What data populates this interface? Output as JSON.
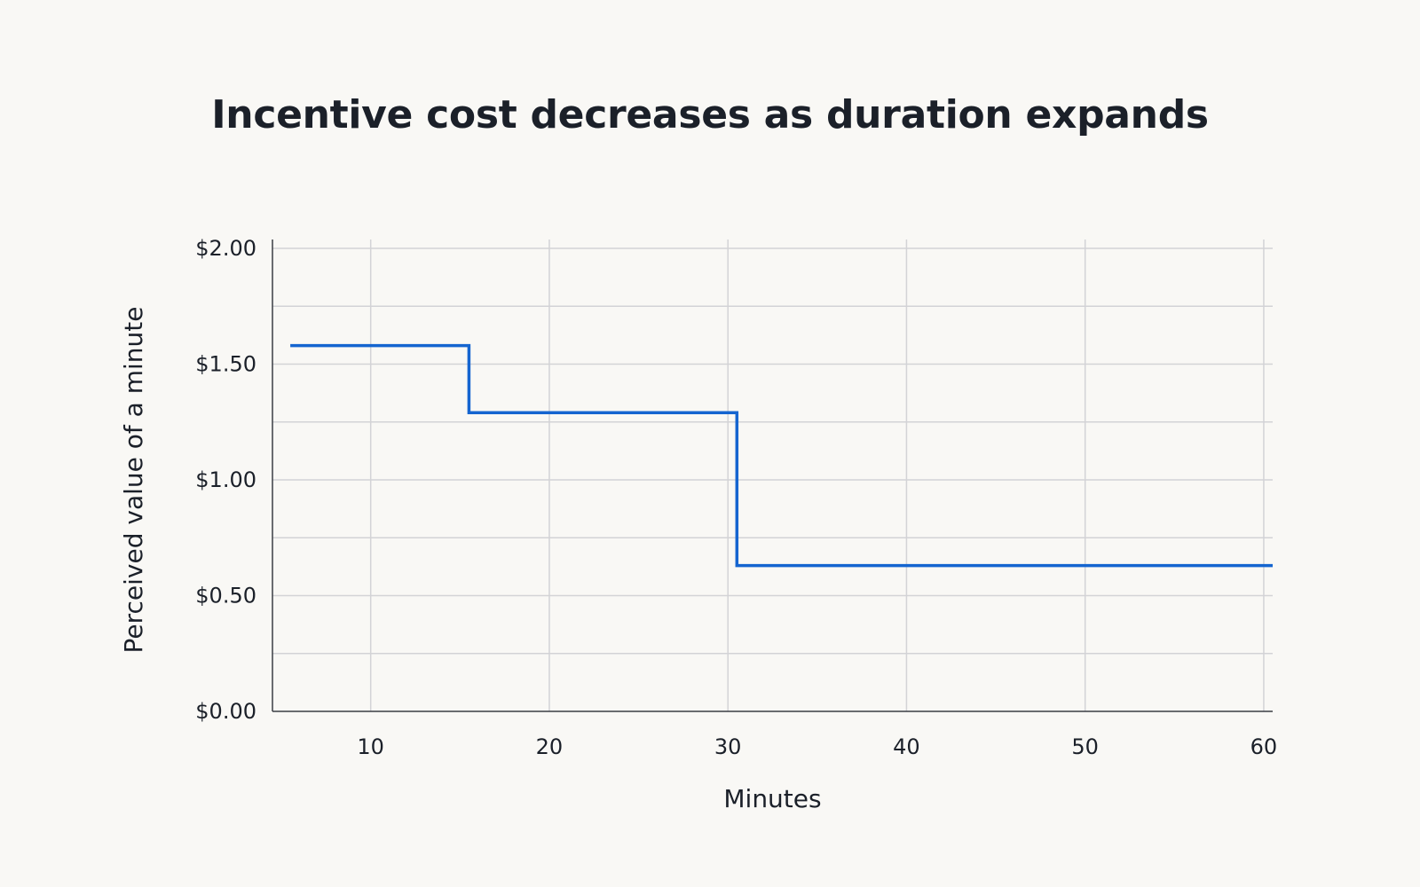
{
  "chart_data": {
    "type": "line",
    "title": "Incentive cost decreases as duration expands",
    "xlabel": "Minutes",
    "ylabel": "Perceived value of a minute",
    "x_ticks": [
      10,
      20,
      30,
      40,
      50,
      60
    ],
    "y_ticks": [
      "$0.00",
      "$0.50",
      "$1.00",
      "$1.50",
      "$2.00"
    ],
    "xlim": [
      4.5,
      60.5
    ],
    "ylim": [
      0,
      2.0
    ],
    "grid": true,
    "series": [
      {
        "line_style": "step",
        "color": "#1565d0",
        "points": [
          {
            "x": 5.5,
            "y": 1.58
          },
          {
            "x": 15.5,
            "y": 1.58
          },
          {
            "x": 15.5,
            "y": 1.29
          },
          {
            "x": 30.5,
            "y": 1.29
          },
          {
            "x": 30.5,
            "y": 0.63
          },
          {
            "x": 60.5,
            "y": 0.63
          }
        ]
      }
    ]
  }
}
